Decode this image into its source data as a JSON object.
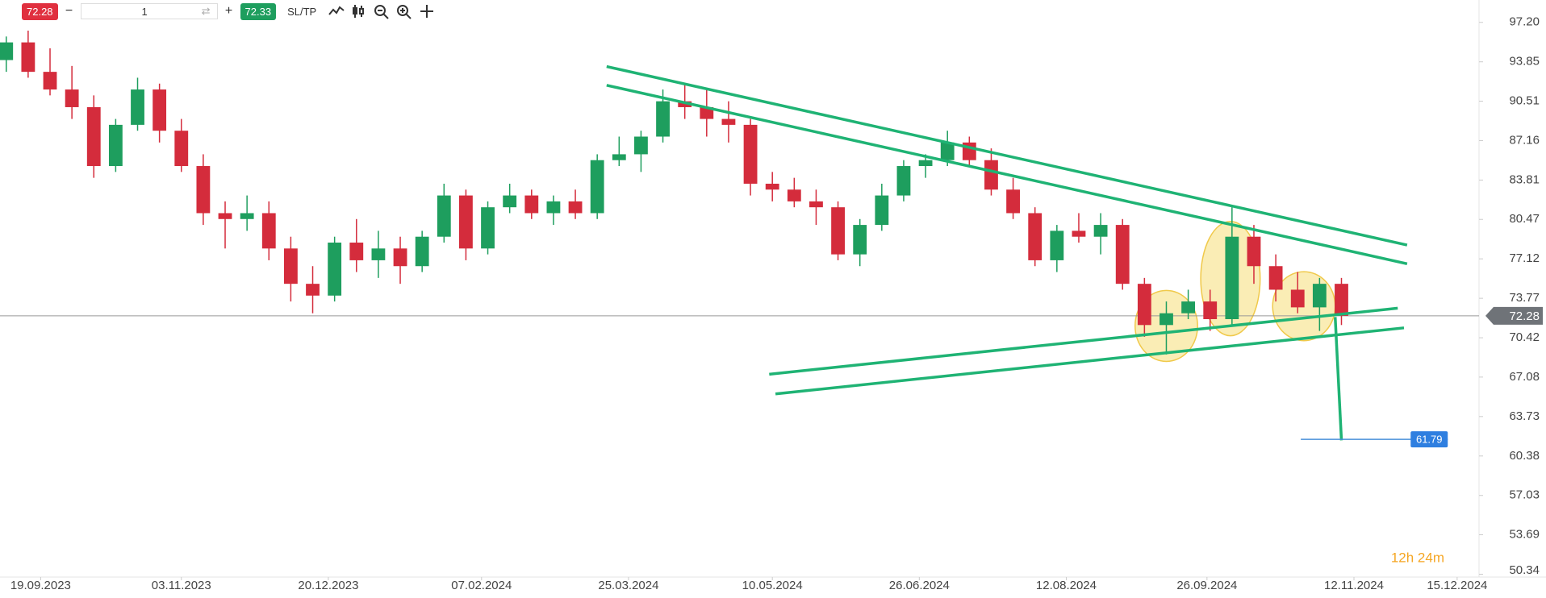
{
  "toolbar": {
    "bid": "72.28",
    "quantity": "1",
    "ask": "72.33",
    "sltp": "SL/TP",
    "timer": "12h 24m"
  },
  "chart_data": {
    "type": "candlestick",
    "x": [
      "08.09.2023",
      "15.09.2023",
      "22.09.2023",
      "29.09.2023",
      "06.10.2023",
      "13.10.2023",
      "20.10.2023",
      "27.10.2023",
      "03.11.2023",
      "10.11.2023",
      "17.11.2023",
      "24.11.2023",
      "01.12.2023",
      "08.12.2023",
      "15.12.2023",
      "22.12.2023",
      "29.12.2023",
      "05.01.2024",
      "12.01.2024",
      "19.01.2024",
      "26.01.2024",
      "02.02.2024",
      "09.02.2024",
      "16.02.2024",
      "23.02.2024",
      "01.03.2024",
      "08.03.2024",
      "15.03.2024",
      "22.03.2024",
      "29.03.2024",
      "05.04.2024",
      "12.04.2024",
      "19.04.2024",
      "26.04.2024",
      "03.05.2024",
      "10.05.2024",
      "17.05.2024",
      "24.05.2024",
      "31.05.2024",
      "07.06.2024",
      "14.06.2024",
      "21.06.2024",
      "28.06.2024",
      "05.07.2024",
      "12.07.2024",
      "19.07.2024",
      "26.07.2024",
      "02.08.2024",
      "09.08.2024",
      "16.08.2024",
      "23.08.2024",
      "30.08.2024",
      "06.09.2024",
      "13.09.2024",
      "20.09.2024",
      "27.09.2024",
      "04.10.2024",
      "11.10.2024",
      "18.10.2024",
      "25.10.2024",
      "01.11.2024",
      "08.11.2024"
    ],
    "open": [
      94,
      95.5,
      93,
      91.5,
      90,
      85,
      88.5,
      91.5,
      88,
      85,
      81,
      80.5,
      81,
      78,
      75,
      74,
      78.5,
      77,
      78,
      76.5,
      79,
      82.5,
      78,
      81.5,
      82.5,
      81,
      82,
      81,
      85.5,
      86,
      87.5,
      90.5,
      90,
      89,
      88.5,
      83.5,
      83,
      82,
      81.5,
      77.5,
      80,
      82.5,
      85,
      85.5,
      87,
      85.5,
      83,
      81,
      77,
      79.5,
      79,
      80,
      75,
      71.5,
      72.5,
      73.5,
      72,
      79,
      76.5,
      74.5,
      73,
      75
    ],
    "high": [
      96,
      96.5,
      95,
      93.5,
      91,
      89,
      92.5,
      92,
      89,
      86,
      82,
      82.5,
      82,
      79,
      76.5,
      79,
      80.5,
      79.5,
      79,
      79.5,
      83.5,
      83,
      82,
      83.5,
      83,
      82.5,
      83,
      86,
      87.5,
      88,
      91.5,
      92,
      91.5,
      90.5,
      89,
      84.5,
      84,
      83,
      82,
      80.5,
      83.5,
      85.5,
      86,
      88,
      87.5,
      86.5,
      84,
      81.5,
      80,
      81,
      81,
      80.5,
      75.5,
      73.5,
      74.5,
      74.5,
      81.5,
      80,
      77.5,
      76,
      75.5,
      75.5
    ],
    "low": [
      93,
      92.5,
      91,
      89,
      84,
      84.5,
      88,
      87,
      84.5,
      80,
      78,
      79.5,
      77,
      73.5,
      72.5,
      73.5,
      76,
      75.5,
      75,
      76,
      78.5,
      77,
      77.5,
      81,
      80.5,
      80,
      80.5,
      80.5,
      85,
      84.5,
      87,
      89,
      87.5,
      87,
      82.5,
      82,
      81.5,
      80,
      77,
      76.5,
      79.5,
      82,
      84,
      85,
      85,
      82.5,
      80.5,
      76.5,
      76,
      78.5,
      77.5,
      74.5,
      70.5,
      69,
      72,
      71,
      71.5,
      75,
      73.5,
      72.5,
      71,
      71.5
    ],
    "close": [
      95.5,
      93,
      91.5,
      90,
      85,
      88.5,
      91.5,
      88,
      85,
      81,
      80.5,
      81,
      78,
      75,
      74,
      78.5,
      77,
      78,
      76.5,
      79,
      82.5,
      78,
      81.5,
      82.5,
      81,
      82,
      81,
      85.5,
      86,
      87.5,
      90.5,
      90,
      89,
      88.5,
      83.5,
      83,
      82,
      81.5,
      77.5,
      80,
      82.5,
      85,
      85.5,
      87,
      85.5,
      83,
      81,
      77,
      79.5,
      79,
      80,
      75,
      71.5,
      72.5,
      73.5,
      72,
      79,
      76.5,
      74.5,
      73,
      75,
      72.28
    ],
    "up_color": "#1e9e5e",
    "down_color": "#d42c3c",
    "line_color": "#1fb374",
    "xlim": [
      "06.09.2023",
      "22.12.2024"
    ],
    "xticks": [
      "19.09.2023",
      "03.11.2023",
      "20.12.2023",
      "07.02.2024",
      "25.03.2024",
      "10.05.2024",
      "26.06.2024",
      "12.08.2024",
      "26.09.2024",
      "12.11.2024",
      "15.12.2024"
    ],
    "ylim": [
      50.1,
      99.1
    ],
    "yticks": [
      {
        "value": 97.2,
        "label": "97.20"
      },
      93.85,
      90.51,
      87.16,
      83.81,
      80.47,
      77.12,
      73.77,
      70.42,
      67.08,
      63.73,
      60.38,
      57.03,
      53.69,
      50.34
    ],
    "last_price": 72.28,
    "trend_lines": [
      {
        "x": [
          "18.03.2024",
          "29.11.2024"
        ],
        "y": [
          93.45,
          78.29
        ]
      },
      {
        "x": [
          "18.03.2024",
          "29.11.2024"
        ],
        "y": [
          91.86,
          76.7
        ]
      },
      {
        "x": [
          "09.05.2024",
          "26.11.2024"
        ],
        "y": [
          67.32,
          72.93
        ]
      },
      {
        "x": [
          "11.05.2024",
          "28.11.2024"
        ],
        "y": [
          65.65,
          71.26
        ]
      },
      {
        "x": [
          "06.11.2024",
          "08.11.2024"
        ],
        "y": [
          72.18,
          61.71
        ]
      }
    ],
    "target": {
      "value": 61.79,
      "x": [
        "26.10.2024",
        "12.12.2024"
      ]
    },
    "highlights": [
      {
        "x": [
          "03.09.2024",
          "23.09.2024"
        ],
        "y": [
          68.41,
          74.44
        ]
      },
      {
        "x": [
          "24.09.2024",
          "13.10.2024"
        ],
        "y": [
          70.59,
          80.3
        ]
      },
      {
        "x": [
          "17.10.2024",
          "06.11.2024"
        ],
        "y": [
          70.17,
          76.03
        ]
      }
    ]
  }
}
